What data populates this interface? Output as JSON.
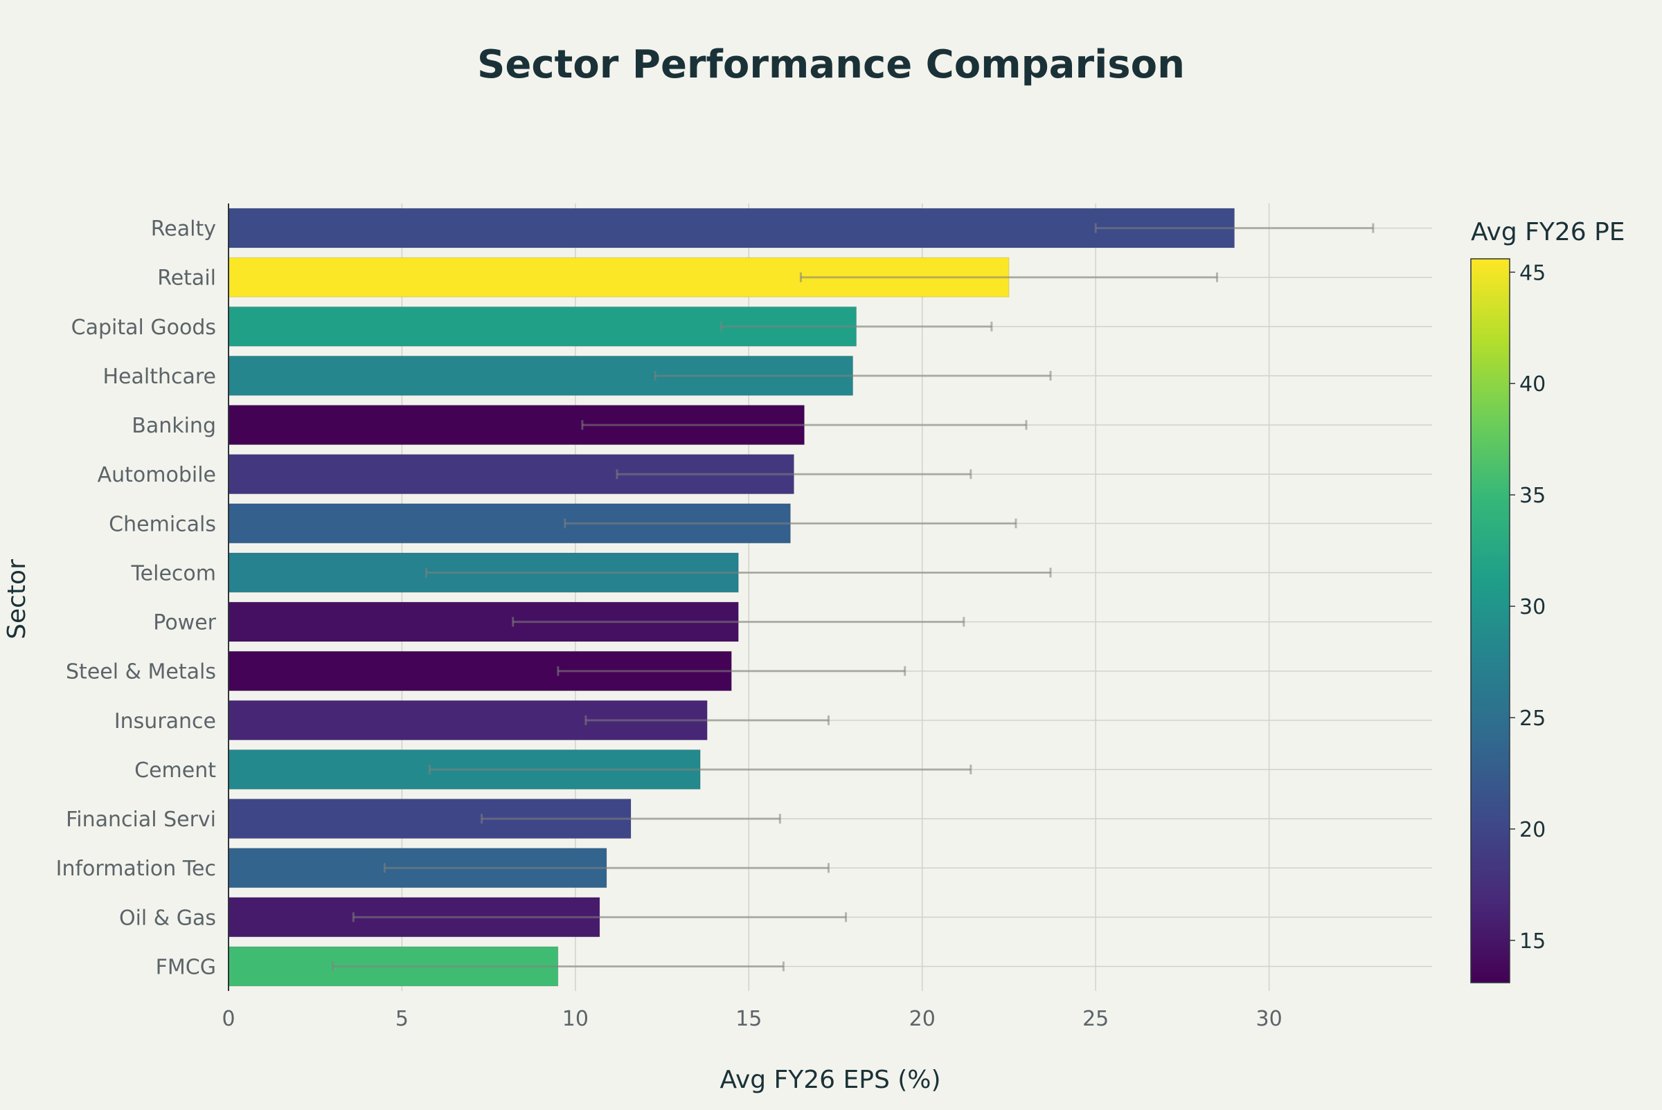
{
  "chart_data": {
    "type": "bar",
    "orientation": "horizontal",
    "title": "Sector Performance Comparison",
    "xlabel": "Avg FY26 EPS (%)",
    "ylabel": "Sector",
    "xlim": [
      0,
      34.7
    ],
    "xticks": [
      0,
      5,
      10,
      15,
      20,
      25,
      30
    ],
    "grid": true,
    "categories": [
      "Realty",
      "Retail",
      "Capital Goods",
      "Healthcare",
      "Banking",
      "Automobile",
      "Chemicals",
      "Telecom",
      "Power",
      "Steel & Metals",
      "Insurance",
      "Cement",
      "Financial Servi",
      "Information Tec",
      "Oil & Gas",
      "FMCG"
    ],
    "values": [
      29.0,
      22.5,
      18.1,
      18.0,
      16.6,
      16.3,
      16.2,
      14.7,
      14.7,
      14.5,
      13.8,
      13.6,
      11.6,
      10.9,
      10.7,
      9.5
    ],
    "error_plus": [
      4.0,
      6.0,
      3.9,
      5.7,
      6.4,
      5.1,
      6.5,
      9.0,
      6.5,
      5.0,
      3.5,
      7.8,
      4.3,
      6.4,
      7.1,
      6.5
    ],
    "error_minus": [
      4.0,
      6.0,
      3.9,
      5.7,
      6.4,
      5.1,
      6.5,
      9.0,
      6.5,
      5.0,
      3.5,
      7.8,
      4.3,
      6.4,
      7.1,
      6.5
    ],
    "color_values": [
      20.5,
      45.5,
      31.5,
      28.0,
      13.2,
      18.5,
      23.0,
      27.5,
      14.5,
      13.3,
      16.5,
      28.5,
      20.0,
      23.5,
      15.5,
      35.5
    ],
    "colorbar": {
      "title": "Avg FY26 PE",
      "range": [
        13.1,
        45.6
      ],
      "ticks": [
        15,
        20,
        25,
        30,
        35,
        40,
        45
      ],
      "colorscale": "Viridis"
    }
  }
}
